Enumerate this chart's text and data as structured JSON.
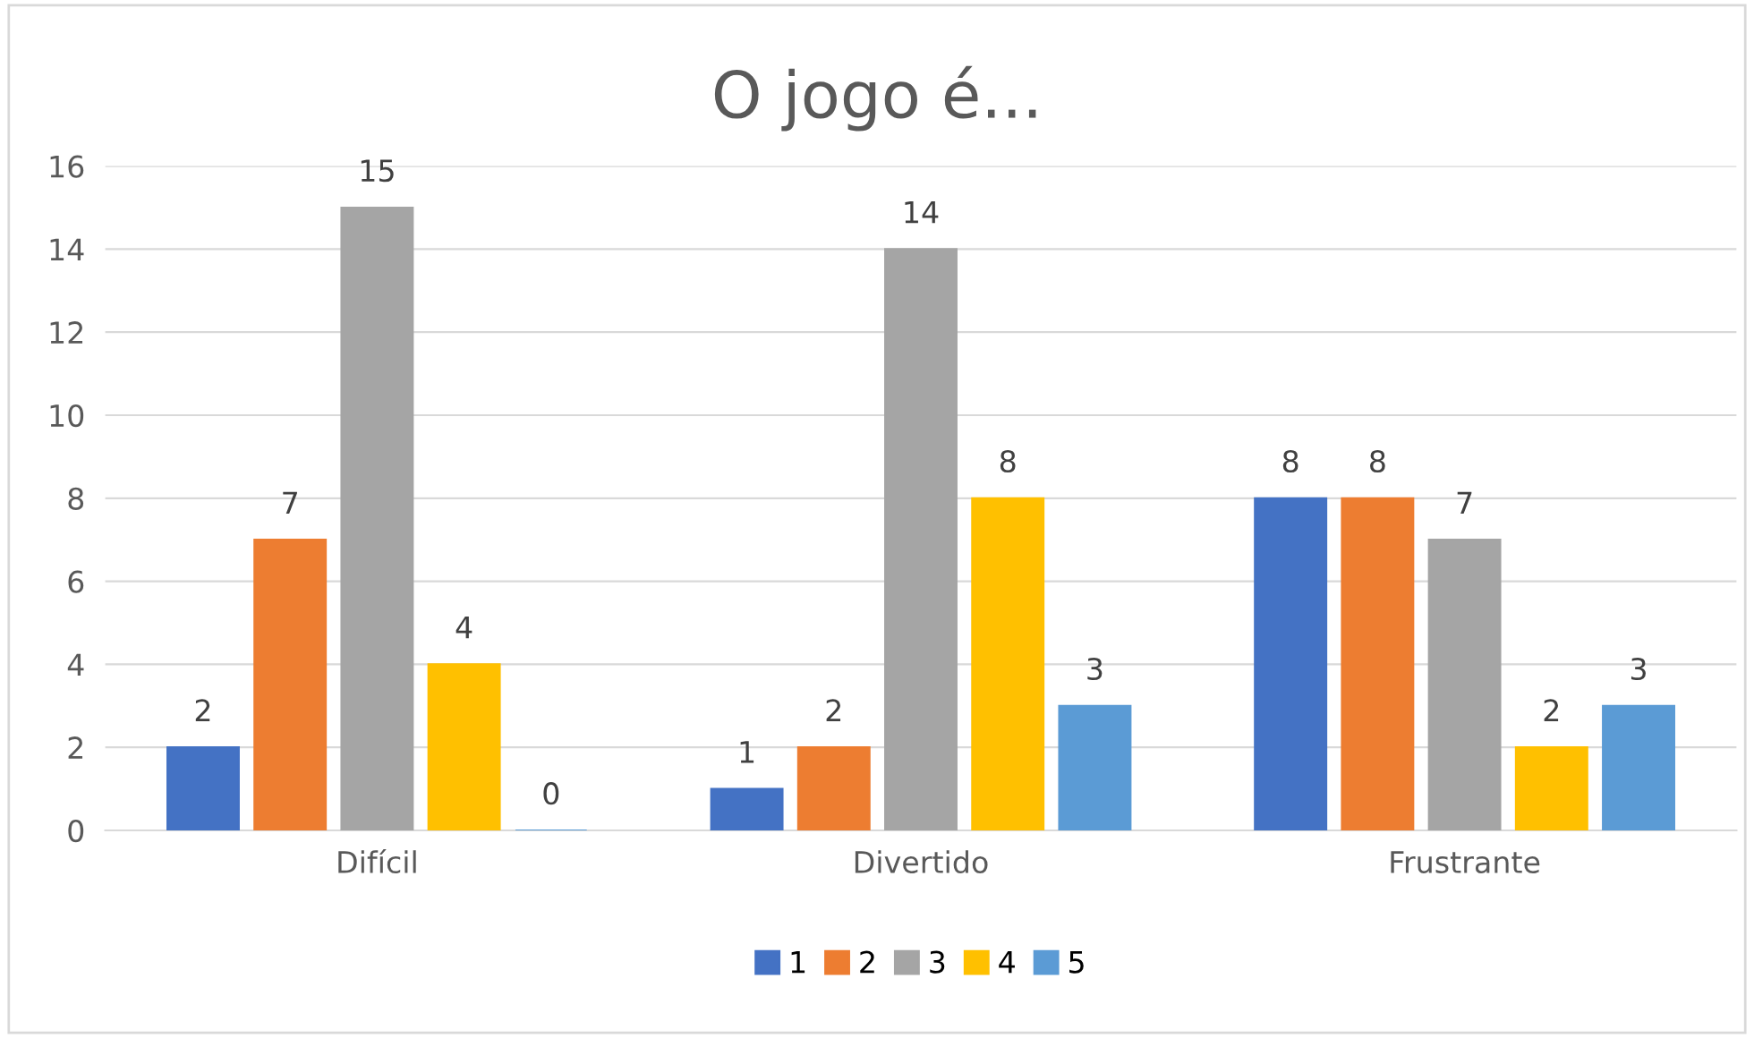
{
  "chart_data": {
    "type": "bar",
    "title": "O jogo é...",
    "categories": [
      "Difícil",
      "Divertido",
      "Frustrante"
    ],
    "series": [
      {
        "name": "1",
        "color": "#4472c4",
        "values": [
          2,
          1,
          8
        ]
      },
      {
        "name": "2",
        "color": "#ed7d31",
        "values": [
          7,
          2,
          8
        ]
      },
      {
        "name": "3",
        "color": "#a5a5a5",
        "values": [
          15,
          14,
          7
        ]
      },
      {
        "name": "4",
        "color": "#ffc000",
        "values": [
          4,
          8,
          2
        ]
      },
      {
        "name": "5",
        "color": "#5b9bd5",
        "values": [
          0,
          3,
          3
        ]
      }
    ],
    "ylim": [
      0,
      16
    ],
    "yticks": [
      0,
      2,
      4,
      6,
      8,
      10,
      12,
      14,
      16
    ],
    "grid": "y",
    "legend": "bottom",
    "data_labels": true
  }
}
